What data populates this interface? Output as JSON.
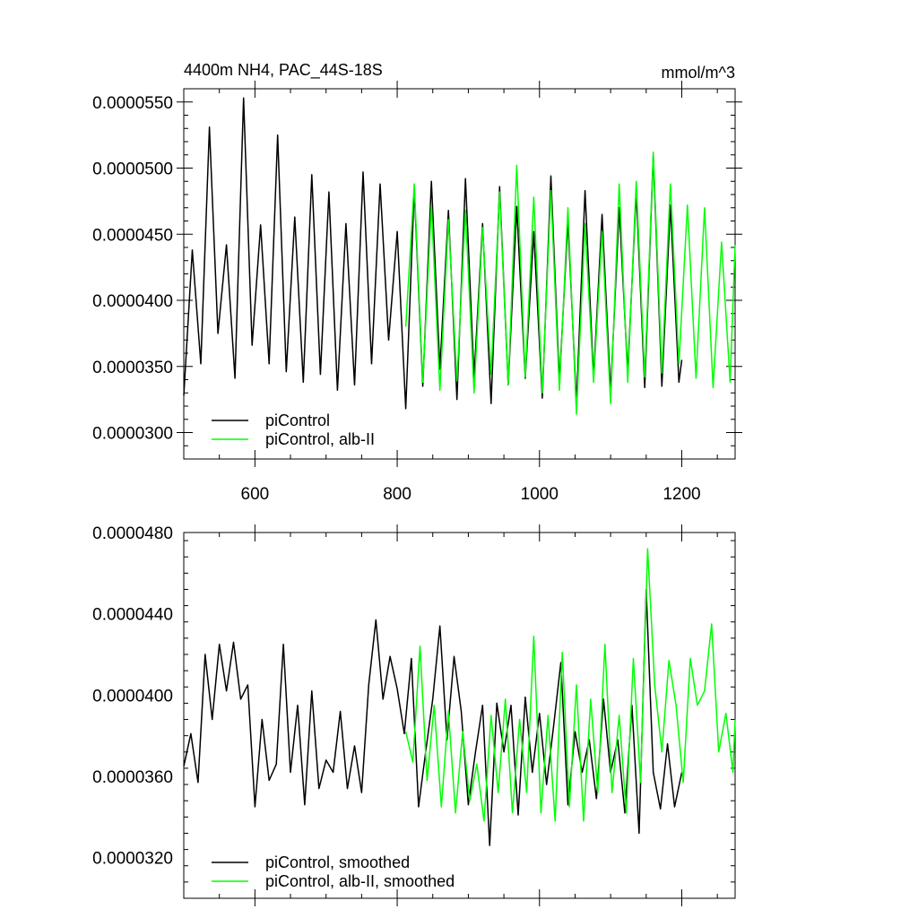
{
  "chart_data": [
    {
      "type": "line",
      "title": "4400m NH4, PAC_44S-18S",
      "units": "mmol/m^3",
      "xlim": [
        500,
        1275
      ],
      "ylim": [
        2.8e-05,
        5.6e-05
      ],
      "xticks": [
        600,
        800,
        1000,
        1200
      ],
      "xtick_labels": [
        "600",
        "800",
        "1000",
        "1200"
      ],
      "yticks": [
        3e-05,
        3.5e-05,
        4e-05,
        4.5e-05,
        5e-05,
        5.5e-05
      ],
      "ytick_labels": [
        "0.0000300",
        "0.0000350",
        "0.0000400",
        "0.0000450",
        "0.0000500",
        "0.0000550"
      ],
      "legend_position": "bottom-left",
      "series": [
        {
          "name": "piControl",
          "color": "#000000",
          "x": [
            500,
            512,
            524,
            536,
            548,
            560,
            572,
            584,
            596,
            608,
            620,
            632,
            644,
            656,
            668,
            680,
            692,
            704,
            716,
            728,
            740,
            752,
            764,
            776,
            788,
            800,
            812,
            824,
            836,
            848,
            860,
            872,
            884,
            896,
            908,
            920,
            932,
            944,
            956,
            968,
            980,
            992,
            1004,
            1016,
            1028,
            1040,
            1052,
            1064,
            1076,
            1088,
            1100,
            1112,
            1124,
            1136,
            1148,
            1160,
            1172,
            1184,
            1196,
            1200
          ],
          "y": [
            3.28e-05,
            4.38e-05,
            3.52e-05,
            5.31e-05,
            3.75e-05,
            4.42e-05,
            3.41e-05,
            5.53e-05,
            3.66e-05,
            4.57e-05,
            3.52e-05,
            5.25e-05,
            3.46e-05,
            4.63e-05,
            3.38e-05,
            4.95e-05,
            3.44e-05,
            4.82e-05,
            3.32e-05,
            4.58e-05,
            3.36e-05,
            4.97e-05,
            3.52e-05,
            4.88e-05,
            3.7e-05,
            4.52e-05,
            3.18e-05,
            4.84e-05,
            3.35e-05,
            4.9e-05,
            3.48e-05,
            4.68e-05,
            3.25e-05,
            4.92e-05,
            3.42e-05,
            4.58e-05,
            3.22e-05,
            4.86e-05,
            3.36e-05,
            4.71e-05,
            3.41e-05,
            4.52e-05,
            3.26e-05,
            4.94e-05,
            3.38e-05,
            4.6e-05,
            3.22e-05,
            4.83e-05,
            3.41e-05,
            4.65e-05,
            3.3e-05,
            4.7e-05,
            3.45e-05,
            4.82e-05,
            3.34e-05,
            5.1e-05,
            3.35e-05,
            4.72e-05,
            3.38e-05,
            3.55e-05
          ]
        },
        {
          "name": "piControl, alb-II",
          "color": "#00ff00",
          "x": [
            812,
            824,
            836,
            848,
            860,
            872,
            884,
            896,
            908,
            920,
            932,
            944,
            956,
            968,
            980,
            992,
            1004,
            1016,
            1028,
            1040,
            1052,
            1064,
            1076,
            1088,
            1100,
            1112,
            1124,
            1136,
            1148,
            1160,
            1172,
            1184,
            1196,
            1208,
            1220,
            1232,
            1244,
            1256,
            1268,
            1275
          ],
          "y": [
            3.8e-05,
            4.88e-05,
            3.38e-05,
            4.72e-05,
            3.32e-05,
            4.61e-05,
            3.39e-05,
            4.68e-05,
            3.3e-05,
            4.55e-05,
            3.44e-05,
            4.82e-05,
            3.36e-05,
            5.02e-05,
            3.42e-05,
            4.78e-05,
            3.3e-05,
            4.83e-05,
            3.32e-05,
            4.7e-05,
            3.14e-05,
            4.58e-05,
            3.38e-05,
            4.52e-05,
            3.22e-05,
            4.88e-05,
            3.38e-05,
            4.9e-05,
            3.42e-05,
            5.12e-05,
            3.45e-05,
            4.88e-05,
            3.52e-05,
            4.72e-05,
            3.41e-05,
            4.7e-05,
            3.34e-05,
            4.44e-05,
            3.38e-05,
            4.42e-05
          ]
        }
      ]
    },
    {
      "type": "line",
      "xlim": [
        500,
        1275
      ],
      "ylim": [
        3e-05,
        4.8e-05
      ],
      "xticks": [
        600,
        800,
        1000,
        1200
      ],
      "yticks": [
        3.2e-05,
        3.6e-05,
        4e-05,
        4.4e-05,
        4.8e-05
      ],
      "ytick_labels": [
        "0.0000320",
        "0.0000360",
        "0.0000400",
        "0.0000440",
        "0.0000480"
      ],
      "legend_position": "bottom-left",
      "series": [
        {
          "name": "piControl, smoothed",
          "color": "#000000",
          "x": [
            500,
            510,
            520,
            530,
            540,
            550,
            560,
            570,
            580,
            590,
            600,
            610,
            620,
            630,
            640,
            650,
            660,
            670,
            680,
            690,
            700,
            710,
            720,
            730,
            740,
            750,
            760,
            770,
            780,
            790,
            800,
            810,
            820,
            830,
            840,
            850,
            860,
            870,
            880,
            890,
            900,
            910,
            920,
            930,
            940,
            950,
            960,
            970,
            980,
            990,
            1000,
            1010,
            1020,
            1030,
            1040,
            1050,
            1060,
            1070,
            1080,
            1090,
            1100,
            1110,
            1120,
            1130,
            1140,
            1150,
            1160,
            1170,
            1180,
            1190,
            1200
          ],
          "y": [
            3.65e-05,
            3.81e-05,
            3.57e-05,
            4.2e-05,
            3.88e-05,
            4.25e-05,
            4.02e-05,
            4.26e-05,
            3.98e-05,
            4.05e-05,
            3.45e-05,
            3.88e-05,
            3.58e-05,
            3.66e-05,
            4.25e-05,
            3.62e-05,
            3.95e-05,
            3.46e-05,
            4.02e-05,
            3.54e-05,
            3.68e-05,
            3.62e-05,
            3.92e-05,
            3.54e-05,
            3.75e-05,
            3.52e-05,
            4.05e-05,
            4.37e-05,
            3.98e-05,
            4.19e-05,
            4.03e-05,
            3.81e-05,
            4.18e-05,
            3.45e-05,
            3.72e-05,
            3.98e-05,
            4.34e-05,
            3.78e-05,
            4.19e-05,
            3.92e-05,
            3.46e-05,
            3.72e-05,
            3.95e-05,
            3.26e-05,
            3.96e-05,
            3.72e-05,
            3.95e-05,
            3.41e-05,
            3.99e-05,
            3.62e-05,
            3.91e-05,
            3.56e-05,
            3.85e-05,
            4.16e-05,
            3.46e-05,
            3.82e-05,
            3.62e-05,
            3.78e-05,
            3.49e-05,
            3.98e-05,
            3.62e-05,
            3.78e-05,
            3.42e-05,
            3.95e-05,
            3.32e-05,
            4.52e-05,
            3.62e-05,
            3.44e-05,
            3.76e-05,
            3.45e-05,
            3.62e-05
          ]
        },
        {
          "name": "piControl, alb-II, smoothed",
          "color": "#00ff00",
          "x": [
            812,
            822,
            832,
            842,
            852,
            862,
            872,
            882,
            892,
            902,
            912,
            922,
            932,
            942,
            952,
            962,
            972,
            982,
            992,
            1002,
            1012,
            1022,
            1032,
            1042,
            1052,
            1062,
            1072,
            1082,
            1092,
            1102,
            1112,
            1122,
            1132,
            1142,
            1152,
            1162,
            1172,
            1182,
            1192,
            1202,
            1212,
            1222,
            1232,
            1242,
            1252,
            1262,
            1272,
            1275
          ],
          "y": [
            3.82e-05,
            3.67e-05,
            4.24e-05,
            3.58e-05,
            3.95e-05,
            3.45e-05,
            3.92e-05,
            3.42e-05,
            3.82e-05,
            3.48e-05,
            3.66e-05,
            3.38e-05,
            3.9e-05,
            3.52e-05,
            3.98e-05,
            3.42e-05,
            3.88e-05,
            3.52e-05,
            4.29e-05,
            3.42e-05,
            3.9e-05,
            3.38e-05,
            4.21e-05,
            3.45e-05,
            4.05e-05,
            3.38e-05,
            3.98e-05,
            3.52e-05,
            4.25e-05,
            3.52e-05,
            3.9e-05,
            3.42e-05,
            4.18e-05,
            3.57e-05,
            4.72e-05,
            4.05e-05,
            3.72e-05,
            4.17e-05,
            3.95e-05,
            3.57e-05,
            4.18e-05,
            3.95e-05,
            4.02e-05,
            4.35e-05,
            3.72e-05,
            3.91e-05,
            3.62e-05,
            3.88e-05
          ]
        }
      ]
    }
  ]
}
